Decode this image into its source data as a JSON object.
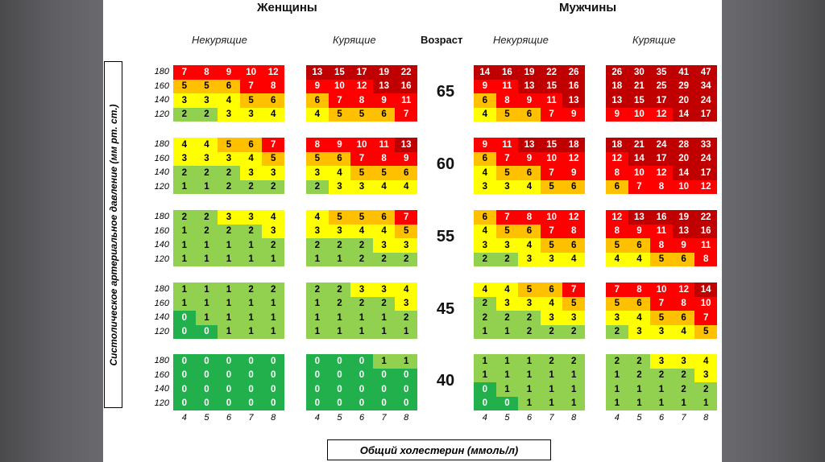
{
  "colors": {
    "darkgreen": "#22b04c",
    "lightgreen": "#92d050",
    "yellow": "#ffff00",
    "orange": "#ffc000",
    "red": "#ff0000",
    "darkred": "#c00000"
  },
  "chart_data": {
    "type": "heatmap",
    "title": "",
    "women_label": "Женщины",
    "men_label": "Мужчины",
    "nonsmoker_label": "Некурящие",
    "smoker_label": "Курящие",
    "age_label": "Возраст",
    "ylabel": "Систолическое артериальное давление (мм рт. ст.)",
    "xlabel": "Общий холестерин (ммоль/л)",
    "sbp_levels": [
      "180",
      "160",
      "140",
      "120"
    ],
    "cholesterol_levels": [
      "4",
      "5",
      "6",
      "7",
      "8"
    ],
    "ages": [
      "65",
      "60",
      "55",
      "45",
      "40"
    ],
    "panels": [
      {
        "sex": "women",
        "smoking": "nonsmoker",
        "grids": [
          [
            [
              7,
              8,
              9,
              10,
              12
            ],
            [
              5,
              5,
              6,
              7,
              8
            ],
            [
              3,
              3,
              4,
              5,
              6
            ],
            [
              2,
              2,
              3,
              3,
              4
            ]
          ],
          [
            [
              4,
              4,
              5,
              6,
              7
            ],
            [
              3,
              3,
              3,
              4,
              5
            ],
            [
              2,
              2,
              2,
              3,
              3
            ],
            [
              1,
              1,
              2,
              2,
              2
            ]
          ],
          [
            [
              2,
              2,
              3,
              3,
              4
            ],
            [
              1,
              2,
              2,
              2,
              3
            ],
            [
              1,
              1,
              1,
              1,
              2
            ],
            [
              1,
              1,
              1,
              1,
              1
            ]
          ],
          [
            [
              1,
              1,
              1,
              2,
              2
            ],
            [
              1,
              1,
              1,
              1,
              1
            ],
            [
              0,
              1,
              1,
              1,
              1
            ],
            [
              0,
              0,
              1,
              1,
              1
            ]
          ],
          [
            [
              0,
              0,
              0,
              0,
              0
            ],
            [
              0,
              0,
              0,
              0,
              0
            ],
            [
              0,
              0,
              0,
              0,
              0
            ],
            [
              0,
              0,
              0,
              0,
              0
            ]
          ]
        ]
      },
      {
        "sex": "women",
        "smoking": "smoker",
        "grids": [
          [
            [
              13,
              15,
              17,
              19,
              22
            ],
            [
              9,
              10,
              12,
              13,
              16
            ],
            [
              6,
              7,
              8,
              9,
              11
            ],
            [
              4,
              5,
              5,
              6,
              7
            ]
          ],
          [
            [
              8,
              9,
              10,
              11,
              13
            ],
            [
              5,
              6,
              7,
              8,
              9
            ],
            [
              3,
              4,
              5,
              5,
              6
            ],
            [
              2,
              3,
              3,
              4,
              4
            ]
          ],
          [
            [
              4,
              5,
              5,
              6,
              7
            ],
            [
              3,
              3,
              4,
              4,
              5
            ],
            [
              2,
              2,
              2,
              3,
              3
            ],
            [
              1,
              1,
              2,
              2,
              2
            ]
          ],
          [
            [
              2,
              2,
              3,
              3,
              4
            ],
            [
              1,
              2,
              2,
              2,
              3
            ],
            [
              1,
              1,
              1,
              1,
              2
            ],
            [
              1,
              1,
              1,
              1,
              1
            ]
          ],
          [
            [
              0,
              0,
              0,
              1,
              1
            ],
            [
              0,
              0,
              0,
              0,
              0
            ],
            [
              0,
              0,
              0,
              0,
              0
            ],
            [
              0,
              0,
              0,
              0,
              0
            ]
          ]
        ]
      },
      {
        "sex": "men",
        "smoking": "nonsmoker",
        "grids": [
          [
            [
              14,
              16,
              19,
              22,
              26
            ],
            [
              9,
              11,
              13,
              15,
              16
            ],
            [
              6,
              8,
              9,
              11,
              13
            ],
            [
              4,
              5,
              6,
              7,
              9
            ]
          ],
          [
            [
              9,
              11,
              13,
              15,
              18
            ],
            [
              6,
              7,
              9,
              10,
              12
            ],
            [
              4,
              5,
              6,
              7,
              9
            ],
            [
              3,
              3,
              4,
              5,
              6
            ]
          ],
          [
            [
              6,
              7,
              8,
              10,
              12
            ],
            [
              4,
              5,
              6,
              7,
              8
            ],
            [
              3,
              3,
              4,
              5,
              6
            ],
            [
              2,
              2,
              3,
              3,
              4
            ]
          ],
          [
            [
              4,
              4,
              5,
              6,
              7
            ],
            [
              2,
              3,
              3,
              4,
              5
            ],
            [
              2,
              2,
              2,
              3,
              3
            ],
            [
              1,
              1,
              2,
              2,
              2
            ]
          ],
          [
            [
              1,
              1,
              1,
              2,
              2
            ],
            [
              1,
              1,
              1,
              1,
              1
            ],
            [
              0,
              1,
              1,
              1,
              1
            ],
            [
              0,
              0,
              1,
              1,
              1
            ]
          ]
        ]
      },
      {
        "sex": "men",
        "smoking": "smoker",
        "grids": [
          [
            [
              26,
              30,
              35,
              41,
              47
            ],
            [
              18,
              21,
              25,
              29,
              34
            ],
            [
              13,
              15,
              17,
              20,
              24
            ],
            [
              9,
              10,
              12,
              14,
              17
            ]
          ],
          [
            [
              18,
              21,
              24,
              28,
              33
            ],
            [
              12,
              14,
              17,
              20,
              24
            ],
            [
              8,
              10,
              12,
              14,
              17
            ],
            [
              6,
              7,
              8,
              10,
              12
            ]
          ],
          [
            [
              12,
              13,
              16,
              19,
              22
            ],
            [
              8,
              9,
              11,
              13,
              16
            ],
            [
              5,
              6,
              8,
              9,
              11
            ],
            [
              4,
              4,
              5,
              6,
              8
            ]
          ],
          [
            [
              7,
              8,
              10,
              12,
              14
            ],
            [
              5,
              6,
              7,
              8,
              10
            ],
            [
              3,
              4,
              5,
              6,
              7
            ],
            [
              2,
              3,
              3,
              4,
              5
            ]
          ],
          [
            [
              2,
              2,
              3,
              3,
              4
            ],
            [
              1,
              2,
              2,
              2,
              3
            ],
            [
              1,
              1,
              1,
              2,
              2
            ],
            [
              1,
              1,
              1,
              1,
              1
            ]
          ]
        ]
      }
    ]
  }
}
